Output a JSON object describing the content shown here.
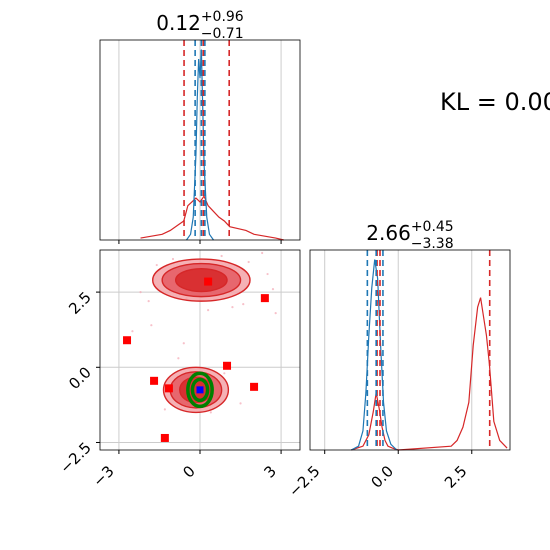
{
  "annotation": {
    "kl_text": "KL = 0.00"
  },
  "colors": {
    "reference": "#d62728",
    "estimate": "#1f77b4",
    "marker": "#ff0000",
    "truth_dot": "#0000ff",
    "contour_green": "#008000"
  },
  "chart_data": [
    {
      "type": "line",
      "panel": "marginal-x",
      "title": {
        "main": "0.12",
        "sup": "+0.96",
        "sub": "−0.71"
      },
      "xlim": [
        -3.7,
        3.7
      ],
      "xticks": [
        -3,
        0,
        3
      ],
      "grid": true,
      "quantile_lines_reference": [
        -0.59,
        0.12,
        1.08
      ],
      "quantile_lines_estimate": [
        -0.18,
        0.05,
        0.18
      ],
      "series": [
        {
          "color": "reference",
          "x": [
            -2.2,
            -1.8,
            -1.4,
            -1.1,
            -0.8,
            -0.6,
            -0.45,
            -0.3,
            -0.15,
            0.0,
            0.15,
            0.3,
            0.5,
            0.7,
            0.9,
            1.1,
            1.4,
            1.7,
            2.0,
            2.4,
            2.8,
            3.1
          ],
          "y": [
            0.01,
            0.02,
            0.03,
            0.05,
            0.08,
            0.1,
            0.18,
            0.2,
            0.22,
            0.2,
            0.23,
            0.18,
            0.15,
            0.12,
            0.1,
            0.07,
            0.06,
            0.05,
            0.03,
            0.02,
            0.01,
            0.0
          ]
        },
        {
          "color": "estimate",
          "x": [
            -0.5,
            -0.35,
            -0.25,
            -0.15,
            -0.1,
            -0.05,
            0.0,
            0.05,
            0.1,
            0.15,
            0.25,
            0.35,
            0.5
          ],
          "y": [
            0.0,
            0.03,
            0.12,
            0.45,
            0.75,
            0.95,
            0.85,
            1.0,
            0.7,
            0.4,
            0.12,
            0.03,
            0.0
          ]
        }
      ]
    },
    {
      "type": "line",
      "panel": "marginal-y",
      "title": {
        "main": "2.66",
        "sup": "+0.45",
        "sub": "−3.38"
      },
      "xlim": [
        -3.0,
        3.8
      ],
      "xticks": [
        -2.5,
        0.0,
        2.5
      ],
      "grid": true,
      "quantile_lines_reference": [
        -0.72,
        -0.62,
        3.11
      ],
      "quantile_lines_estimate": [
        -1.05,
        -0.75,
        -0.52
      ],
      "series": [
        {
          "color": "reference",
          "x": [
            -1.6,
            -1.2,
            -1.0,
            -0.85,
            -0.75,
            -0.65,
            -0.55,
            -0.45,
            -0.35,
            -0.2,
            0.0,
            1.8,
            2.0,
            2.2,
            2.4,
            2.55,
            2.7,
            2.8,
            2.9,
            3.0,
            3.1,
            3.25,
            3.45,
            3.7
          ],
          "y": [
            0.0,
            0.02,
            0.08,
            0.2,
            0.3,
            0.22,
            0.12,
            0.05,
            0.02,
            0.01,
            0.0,
            0.02,
            0.05,
            0.12,
            0.25,
            0.55,
            0.75,
            0.8,
            0.7,
            0.6,
            0.45,
            0.15,
            0.05,
            0.01
          ]
        },
        {
          "color": "estimate",
          "x": [
            -1.6,
            -1.35,
            -1.2,
            -1.1,
            -1.0,
            -0.9,
            -0.8,
            -0.7,
            -0.6,
            -0.5,
            -0.4,
            -0.25,
            -0.05
          ],
          "y": [
            0.0,
            0.02,
            0.1,
            0.3,
            0.6,
            0.85,
            1.0,
            0.9,
            0.55,
            0.25,
            0.1,
            0.03,
            0.0
          ]
        }
      ]
    },
    {
      "type": "scatter",
      "panel": "joint",
      "xlim": [
        -3.7,
        3.7
      ],
      "ylim": [
        -2.75,
        3.9
      ],
      "xticks": [
        -3,
        0,
        3
      ],
      "yticks": [
        -2.5,
        0.0,
        2.5
      ],
      "xtick_labels": [
        "−3",
        "0",
        "3"
      ],
      "ytick_labels": [
        "−2.5",
        "0.0",
        "2.5"
      ],
      "grid": true,
      "markers": [
        {
          "x": 0.3,
          "y": 2.85
        },
        {
          "x": 2.4,
          "y": 2.3
        },
        {
          "x": -2.7,
          "y": 0.9
        },
        {
          "x": 1.0,
          "y": 0.05
        },
        {
          "x": -1.7,
          "y": -0.45
        },
        {
          "x": -1.15,
          "y": -0.7
        },
        {
          "x": 2.0,
          "y": -0.65
        },
        {
          "x": -1.3,
          "y": -2.35
        }
      ],
      "truth_point": {
        "x": 0.0,
        "y": -0.75
      },
      "contours": [
        {
          "cx": 0.05,
          "cy": 2.9,
          "rx": [
            1.8,
            1.45,
            0.95
          ],
          "ry": [
            0.7,
            0.55,
            0.38
          ]
        },
        {
          "cx": -0.15,
          "cy": -0.75,
          "rx": [
            1.2,
            0.95,
            0.6
          ],
          "ry": [
            0.75,
            0.6,
            0.42
          ]
        }
      ],
      "estimate_contour": {
        "cx": 0.0,
        "cy": -0.75,
        "rx": [
          0.45,
          0.28
        ],
        "ry": [
          0.55,
          0.35
        ]
      }
    }
  ]
}
